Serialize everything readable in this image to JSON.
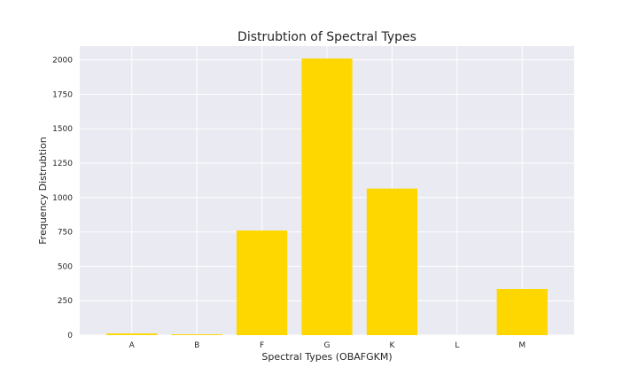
{
  "chart_data": {
    "type": "bar",
    "title": "Distrubtion of Spectral Types",
    "xlabel": "Spectral Types (OBAFGKM)",
    "ylabel": "Frequency Distrubtion",
    "categories": [
      "A",
      "B",
      "F",
      "G",
      "K",
      "L",
      "M"
    ],
    "values": [
      12,
      6,
      760,
      2010,
      1065,
      0,
      335
    ],
    "ylim": [
      0,
      2100
    ],
    "yticks": [
      0,
      250,
      500,
      750,
      1000,
      1250,
      1500,
      1750,
      2000
    ],
    "grid": true,
    "bar_color": "#FFD700",
    "plot_background": "#EAEAF2",
    "grid_color": "#FFFFFF"
  }
}
